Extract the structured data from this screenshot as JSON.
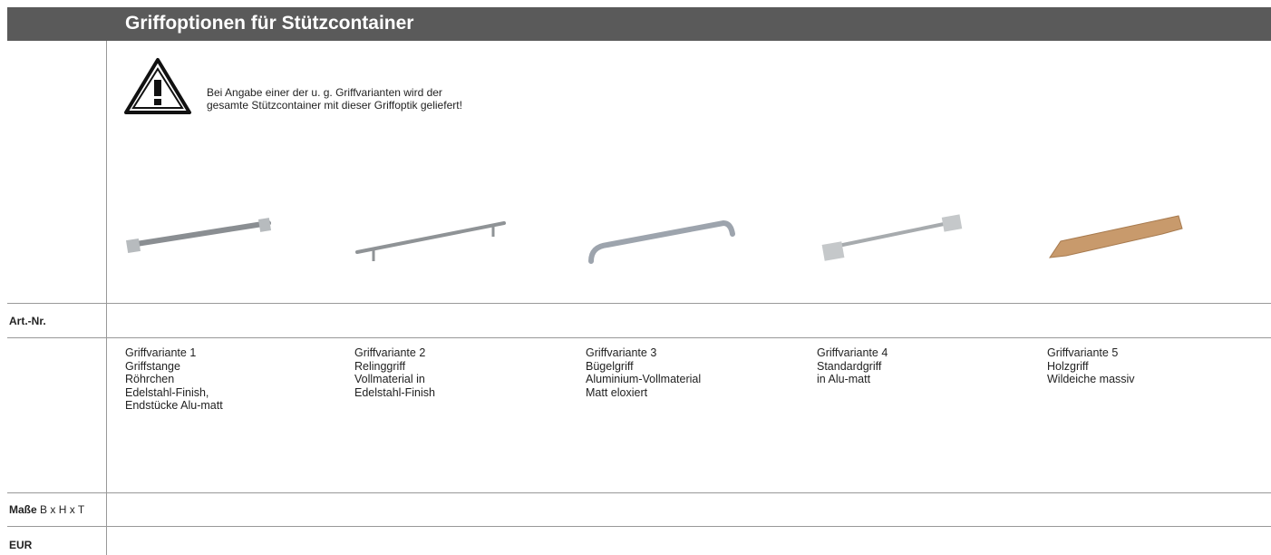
{
  "header": {
    "title": "Griffoptionen für Stützcontainer"
  },
  "notice": {
    "lines": [
      "Bei Angabe einer der u. g. Griffvarianten wird der",
      "gesamte Stützcontainer mit dieser Griffoptik geliefert!"
    ]
  },
  "rows": {
    "article": "Art.-Nr.",
    "dimensions": {
      "label": "Maße",
      "unit": "B x H x T"
    },
    "price": "EUR"
  },
  "variants": [
    {
      "lines": [
        "Griffvariante 1",
        "Griffstange",
        "Röhrchen",
        "Edelstahl-Finish,",
        "Endstücke Alu-matt"
      ]
    },
    {
      "lines": [
        "Griffvariante 2",
        "Relinggriff",
        "Vollmaterial in",
        "Edelstahl-Finish"
      ]
    },
    {
      "lines": [
        "Griffvariante 3",
        "Bügelgriff",
        "Aluminium-Vollmaterial",
        "Matt eloxiert"
      ]
    },
    {
      "lines": [
        "Griffvariante 4",
        "Standardgriff",
        "in Alu-matt"
      ]
    },
    {
      "lines": [
        "Griffvariante 5",
        "Holzgriff",
        "Wildeiche massiv"
      ]
    }
  ]
}
